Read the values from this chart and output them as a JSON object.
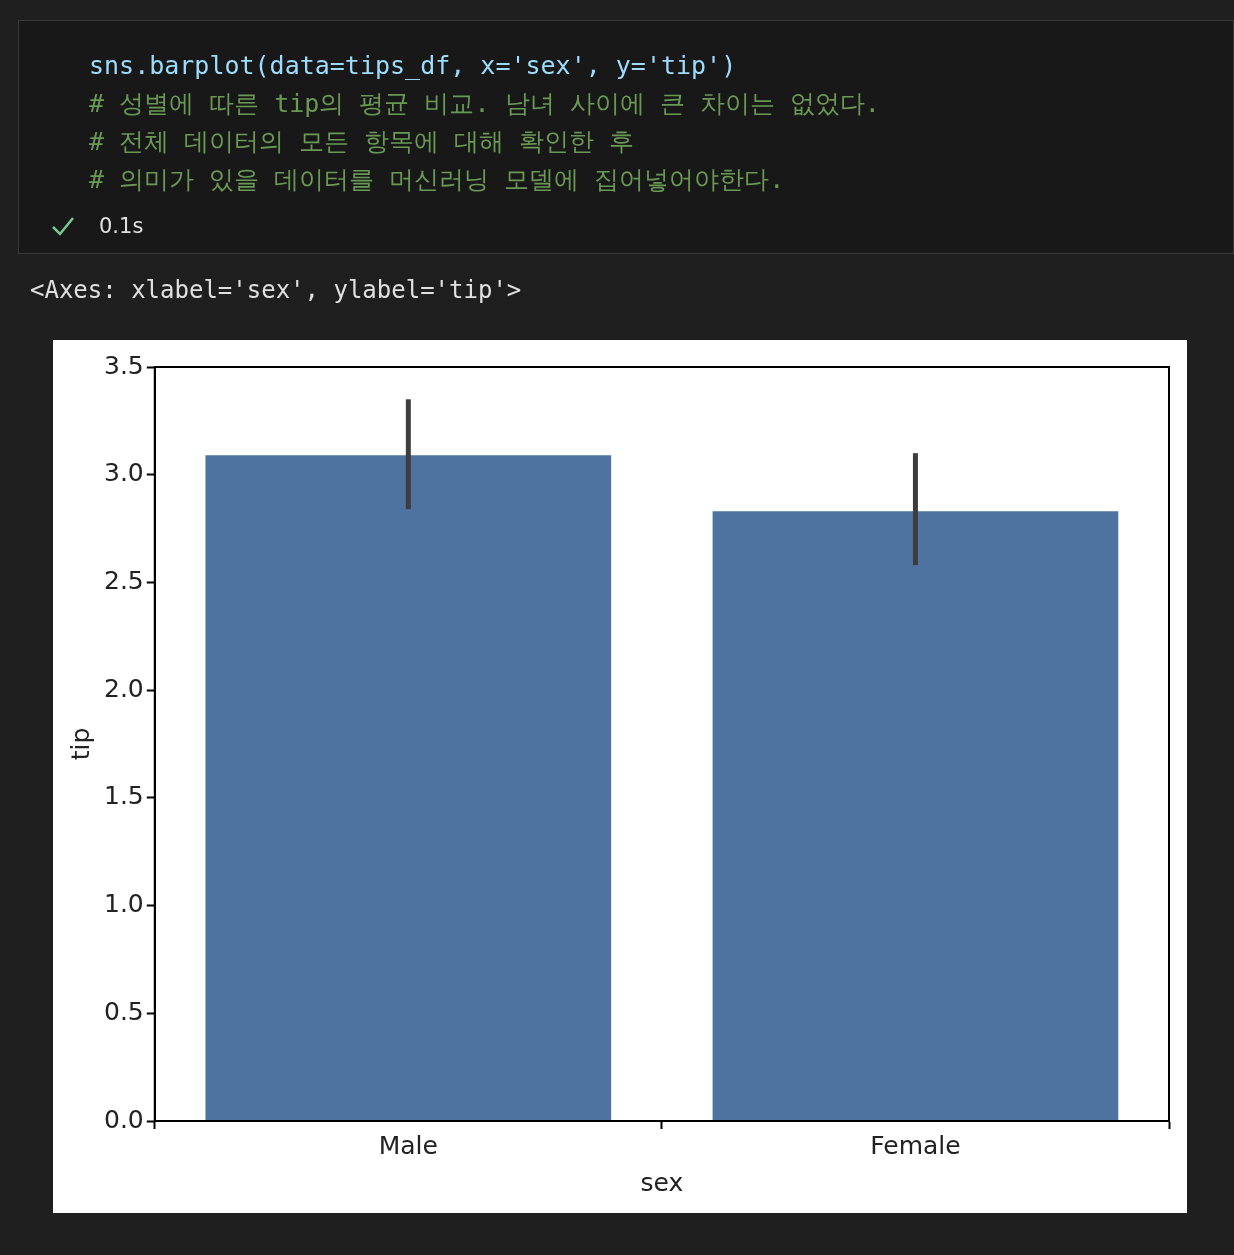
{
  "chart_data": {
    "type": "bar",
    "annotations": [
      "sns.barplot(data=tips_df, x='sex', y='tip')",
      "# 성별에 따른 tip의 평균 비교. 남녀 사이에 큰 차이는 없었다.",
      "# 전체 데이터의 모든 항목에 대해 확인한 후",
      "# 의미가 있을 데이터를 머신러닝 모델에 집어넣어야한다.",
      "0.1s",
      "<Axes: xlabel='sex', ylabel='tip'>"
    ],
    "xlabel": "sex",
    "ylabel": "tip",
    "categories": [
      "Male",
      "Female"
    ],
    "values": [
      3.09,
      2.83
    ],
    "errors": [
      [
        2.84,
        3.35
      ],
      [
        2.58,
        3.1
      ]
    ],
    "color": "#4f73a0",
    "ylim": [
      0,
      3.5
    ],
    "yticks": [
      {
        "value": 0,
        "label": "0.0"
      },
      {
        "value": 0.5,
        "label": "0.5"
      },
      {
        "value": 1,
        "label": "1.0"
      },
      {
        "value": 1.5,
        "label": "1.5"
      },
      {
        "value": 2,
        "label": "2.0"
      },
      {
        "value": 2.5,
        "label": "2.5"
      },
      {
        "value": 3,
        "label": "3.0"
      },
      {
        "value": 3.5,
        "label": "3.5"
      }
    ],
    "grid": false
  }
}
